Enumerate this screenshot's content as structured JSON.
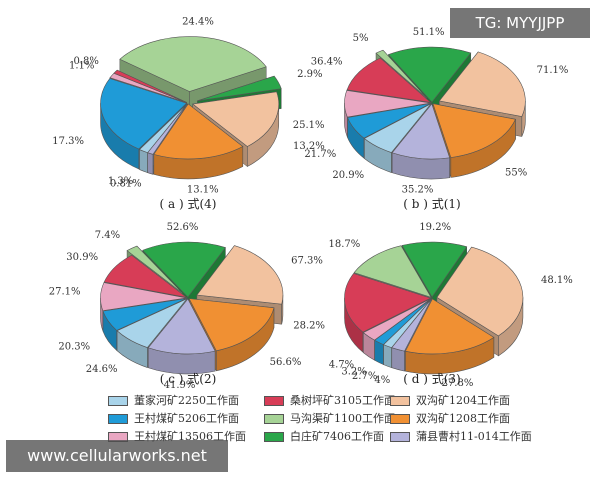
{
  "watermarks": {
    "top": "TG: MYYJJPP",
    "bottom": "www.cellularworks.net"
  },
  "categories": [
    "董家河矿2250工作面",
    "王村煤矿5206工作面",
    "王村煤矿13506工作面",
    "桑树坪矿3105工作面",
    "马沟渠矿1100工作面",
    "白庄矿7406工作面",
    "双沟矿1204工作面",
    "双沟矿1208工作面",
    "蒲县曹村11-014工作面"
  ],
  "colors": [
    "#a9d4ea",
    "#1f9bd7",
    "#e9a7c2",
    "#d73d57",
    "#a6d396",
    "#2aa64a",
    "#f2c29f",
    "#f09033",
    "#b4b3db"
  ],
  "chart_data": [
    {
      "type": "pie",
      "title": "( a ) 式(4)",
      "values": [
        1.3,
        17.3,
        1.1,
        0.8,
        24.4,
        2.9,
        13.2,
        13.1,
        0.81
      ],
      "labels": [
        "1.3%",
        "17.3%",
        "1.1%",
        "0.8%",
        "24.4%",
        "2.9%",
        "13.2%",
        "13.1%",
        "0.81%"
      ]
    },
    {
      "type": "pie",
      "title": "( b ) 式(1)",
      "values": [
        20.9,
        21.7,
        25.1,
        36.4,
        5,
        51.1,
        71.1,
        55,
        35.2
      ],
      "labels": [
        "20.9%",
        "21.7%",
        "25.1%",
        "36.4%",
        "5%",
        "51.1%",
        "71.1%",
        "55%",
        "35.2%"
      ]
    },
    {
      "type": "pie",
      "title": "( c ) 式(2)",
      "values": [
        24.6,
        20.3,
        27.1,
        30.9,
        7.4,
        52.6,
        67.3,
        56.6,
        41.9
      ],
      "labels": [
        "24.6%",
        "20.3%",
        "27.1%",
        "30.9%",
        "7.4%",
        "52.6%",
        "67.3%",
        "56.6%",
        "41.9%"
      ]
    },
    {
      "type": "pie",
      "title": "( d ) 式(3)",
      "values": [
        2.7,
        3.2,
        4.7,
        28.2,
        18.7,
        19.2,
        48.1,
        27.8,
        4
      ],
      "labels": [
        "2.7%",
        "3.2%",
        "4.7%",
        "28.2%",
        "18.7%",
        "19.2%",
        "48.1%",
        "27.8%",
        "4%"
      ]
    }
  ]
}
